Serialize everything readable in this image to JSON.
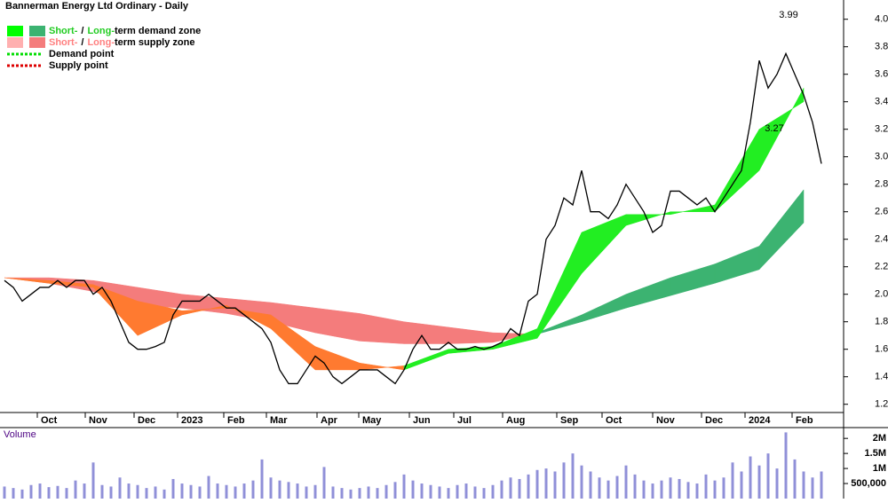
{
  "chart_data": {
    "type": "line",
    "title": "Bannerman Energy Ltd Ordinary - Daily",
    "xlim": [
      -0.5,
      94.5
    ],
    "ylim": [
      1.14,
      4.14
    ],
    "yticks": [
      1.2,
      1.4,
      1.6,
      1.8,
      {
        "value": 2,
        "label": "2.0"
      },
      2.2,
      2.4,
      2.6,
      2.8,
      {
        "value": 3,
        "label": "3.0"
      },
      3.2,
      3.4,
      3.6,
      3.8,
      {
        "value": 4,
        "label": "4.0"
      }
    ],
    "xticks": [
      {
        "value": 3.7,
        "label": "Oct"
      },
      {
        "value": 9.1,
        "label": "Nov"
      },
      {
        "value": 14.6,
        "label": "Dec"
      },
      {
        "value": 19.5,
        "label": "2023"
      },
      {
        "value": 24.7,
        "label": "Feb"
      },
      {
        "value": 29.5,
        "label": "Mar"
      },
      {
        "value": 35.2,
        "label": "Apr"
      },
      {
        "value": 39.9,
        "label": "May"
      },
      {
        "value": 45.6,
        "label": "Jun"
      },
      {
        "value": 50.6,
        "label": "Jul"
      },
      {
        "value": 56.1,
        "label": "Aug"
      },
      {
        "value": 62.2,
        "label": "Sep"
      },
      {
        "value": 67.3,
        "label": "Oct"
      },
      {
        "value": 73,
        "label": "Nov"
      },
      {
        "value": 78.5,
        "label": "Dec"
      },
      {
        "value": 83.4,
        "label": "2024"
      },
      {
        "value": 88.7,
        "label": "Feb"
      }
    ],
    "series": [
      {
        "name": "Close",
        "color": "#000000",
        "values": [
          2.1,
          2.05,
          1.95,
          2.0,
          2.05,
          2.05,
          2.1,
          2.05,
          2.1,
          2.1,
          2.0,
          2.05,
          1.95,
          1.8,
          1.65,
          1.6,
          1.6,
          1.62,
          1.65,
          1.85,
          1.95,
          1.95,
          1.95,
          2.0,
          1.95,
          1.9,
          1.9,
          1.85,
          1.8,
          1.75,
          1.65,
          1.45,
          1.35,
          1.35,
          1.45,
          1.55,
          1.5,
          1.4,
          1.35,
          1.4,
          1.45,
          1.45,
          1.45,
          1.4,
          1.35,
          1.45,
          1.6,
          1.7,
          1.6,
          1.6,
          1.65,
          1.6,
          1.6,
          1.62,
          1.6,
          1.62,
          1.65,
          1.75,
          1.7,
          1.95,
          2.0,
          2.4,
          2.5,
          2.7,
          2.65,
          2.9,
          2.6,
          2.6,
          2.55,
          2.65,
          2.8,
          2.7,
          2.6,
          2.45,
          2.5,
          2.75,
          2.75,
          2.7,
          2.65,
          2.7,
          2.6,
          2.7,
          2.8,
          2.9,
          3.25,
          3.7,
          3.5,
          3.6,
          3.75,
          3.6,
          3.45,
          3.25,
          2.95
        ]
      }
    ],
    "zone_x": [
      0,
      5,
      10,
      15,
      20,
      25,
      30,
      35,
      40,
      45,
      50,
      55,
      60,
      65,
      70,
      75,
      80,
      85,
      90
    ],
    "zones": [
      {
        "fast": [
          2.12,
          2.08,
          2.02,
          1.92,
          1.9,
          1.86,
          1.8,
          1.72,
          1.66,
          1.64,
          1.64,
          1.65,
          1.72,
          1.85,
          2.0,
          2.12,
          2.22,
          2.35,
          2.76
        ],
        "slow": [
          2.12,
          2.12,
          2.1,
          2.05,
          2.0,
          1.97,
          1.94,
          1.9,
          1.86,
          1.8,
          1.76,
          1.72,
          1.71,
          1.8,
          1.9,
          1.99,
          2.08,
          2.18,
          2.52
        ],
        "up_color": "#3cb371",
        "down_color": "#f47c7c"
      },
      {
        "fast": [
          2.12,
          2.08,
          2.05,
          1.7,
          1.85,
          1.92,
          1.75,
          1.45,
          1.45,
          1.48,
          1.6,
          1.62,
          1.75,
          2.45,
          2.58,
          2.58,
          2.65,
          3.2,
          3.4
        ],
        "slow": [
          2.12,
          2.1,
          2.07,
          1.95,
          1.88,
          1.9,
          1.85,
          1.62,
          1.5,
          1.45,
          1.57,
          1.6,
          1.68,
          2.15,
          2.5,
          2.6,
          2.6,
          2.9,
          3.5
        ],
        "up_color": "#22ee22",
        "down_color": "#ff7a30"
      }
    ],
    "annotations": [
      3.99,
      3.27
    ],
    "legend": [
      {
        "parts": [
          "Short-",
          "/",
          "Long-",
          "term demand zone"
        ],
        "colors": [
          "#00ff00",
          "#3cb371"
        ],
        "text_color": "#22cc22"
      },
      {
        "parts": [
          "Short-",
          "/",
          "Long-",
          "term supply zone"
        ],
        "colors": [
          "#ffb0b0",
          "#f47c7c"
        ],
        "text_color": "#ff8080"
      },
      {
        "parts": [
          "Demand point"
        ],
        "colors": [
          "#00dd00"
        ],
        "dotted": true
      },
      {
        "parts": [
          "Supply point"
        ],
        "colors": [
          "#dd0000"
        ],
        "dotted": true
      }
    ],
    "volume": {
      "title": "Volume",
      "color": "#9090d8",
      "ylim": [
        0,
        2300000
      ],
      "yticks": [
        {
          "value": 500000,
          "label": "500,000"
        },
        {
          "value": 1000000,
          "label": "1M"
        },
        {
          "value": 1500000,
          "label": "1.5M"
        },
        {
          "value": 2000000,
          "label": "2M"
        }
      ],
      "values": [
        400000,
        350000,
        300000,
        450000,
        500000,
        380000,
        420000,
        350000,
        600000,
        500000,
        1200000,
        450000,
        400000,
        700000,
        500000,
        450000,
        350000,
        400000,
        300000,
        650000,
        500000,
        450000,
        400000,
        750000,
        500000,
        450000,
        400000,
        500000,
        600000,
        1300000,
        700000,
        600000,
        550000,
        500000,
        400000,
        450000,
        1050000,
        400000,
        350000,
        300000,
        350000,
        400000,
        350000,
        450000,
        550000,
        800000,
        600000,
        500000,
        450000,
        400000,
        350000,
        450000,
        500000,
        400000,
        350000,
        450000,
        600000,
        700000,
        650000,
        800000,
        950000,
        1000000,
        900000,
        1200000,
        1500000,
        1100000,
        900000,
        700000,
        600000,
        750000,
        1100000,
        800000,
        600000,
        500000,
        600000,
        700000,
        650000,
        550000,
        500000,
        800000,
        600000,
        700000,
        1200000,
        900000,
        1400000,
        1100000,
        1500000,
        1000000,
        2200000,
        1300000,
        900000,
        700000,
        900000
      ]
    }
  }
}
